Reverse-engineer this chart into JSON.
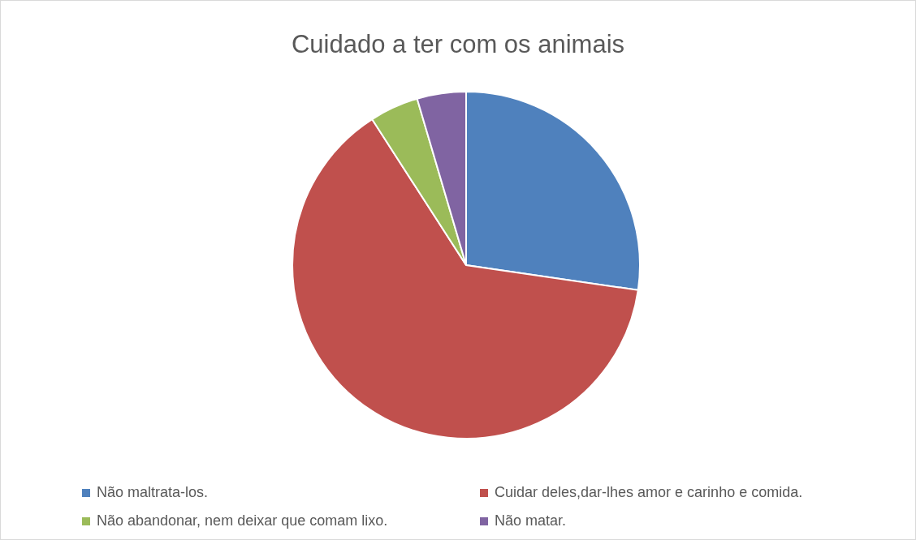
{
  "chart_data": {
    "type": "pie",
    "title": "Cuidado a ter com os animais",
    "categories": [
      "Não maltrata-los.",
      "Cuidar deles,dar-lhes amor e carinho e comida.",
      "Não abandonar, nem deixar que comam lixo.",
      "Não matar."
    ],
    "values": [
      27.3,
      63.6,
      4.55,
      4.55
    ],
    "colors": [
      "#4f81bd",
      "#c0504d",
      "#9bbb59",
      "#8064a2"
    ],
    "legend": "bottom"
  }
}
